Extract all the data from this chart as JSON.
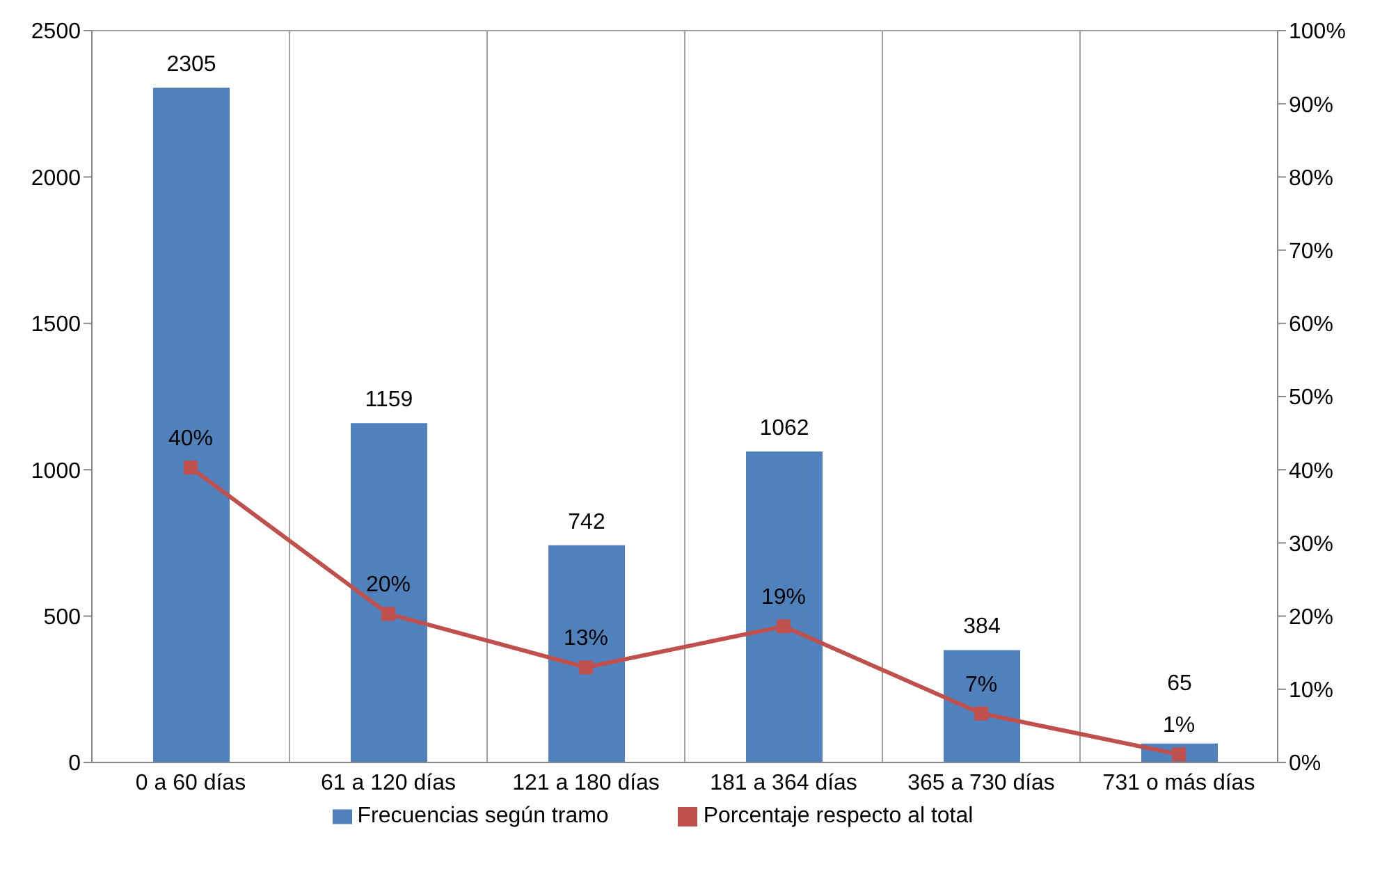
{
  "chart_data": {
    "type": "bar",
    "categories": [
      "0 a 60 días",
      "61 a 120 días",
      "121 a 180 días",
      "181 a 364 días",
      "365 a 730 días",
      "731 o más días"
    ],
    "series": [
      {
        "name": "Frecuencias según tramo",
        "color": "#4f81bd",
        "values": [
          2305,
          1159,
          742,
          1062,
          384,
          65
        ],
        "value_labels": [
          "2305",
          "1159",
          "742",
          "1062",
          "384",
          "65"
        ]
      },
      {
        "name": "Porcentaje respecto al total",
        "type": "line",
        "axis": "y2",
        "color": "#c0504d",
        "values": [
          40.3,
          20.3,
          13.0,
          18.6,
          6.7,
          1.1
        ],
        "value_labels": [
          "40%",
          "20%",
          "13%",
          "19%",
          "7%",
          "1%"
        ]
      }
    ],
    "ylim": [
      0,
      2500
    ],
    "yticks": [
      0,
      500,
      1000,
      1500,
      2000,
      2500
    ],
    "y2lim": [
      0,
      100
    ],
    "y2ticks": [
      {
        "value": 0,
        "label": "0%"
      },
      {
        "value": 10,
        "label": "10%"
      },
      {
        "value": 20,
        "label": "20%"
      },
      {
        "value": 30,
        "label": "30%"
      },
      {
        "value": 40,
        "label": "40%"
      },
      {
        "value": 50,
        "label": "50%"
      },
      {
        "value": 60,
        "label": "60%"
      },
      {
        "value": 70,
        "label": "70%"
      },
      {
        "value": 80,
        "label": "80%"
      },
      {
        "value": 90,
        "label": "90%"
      },
      {
        "value": 100,
        "label": "100%"
      }
    ],
    "grid": true,
    "legend": "bottom",
    "marker": "square"
  }
}
